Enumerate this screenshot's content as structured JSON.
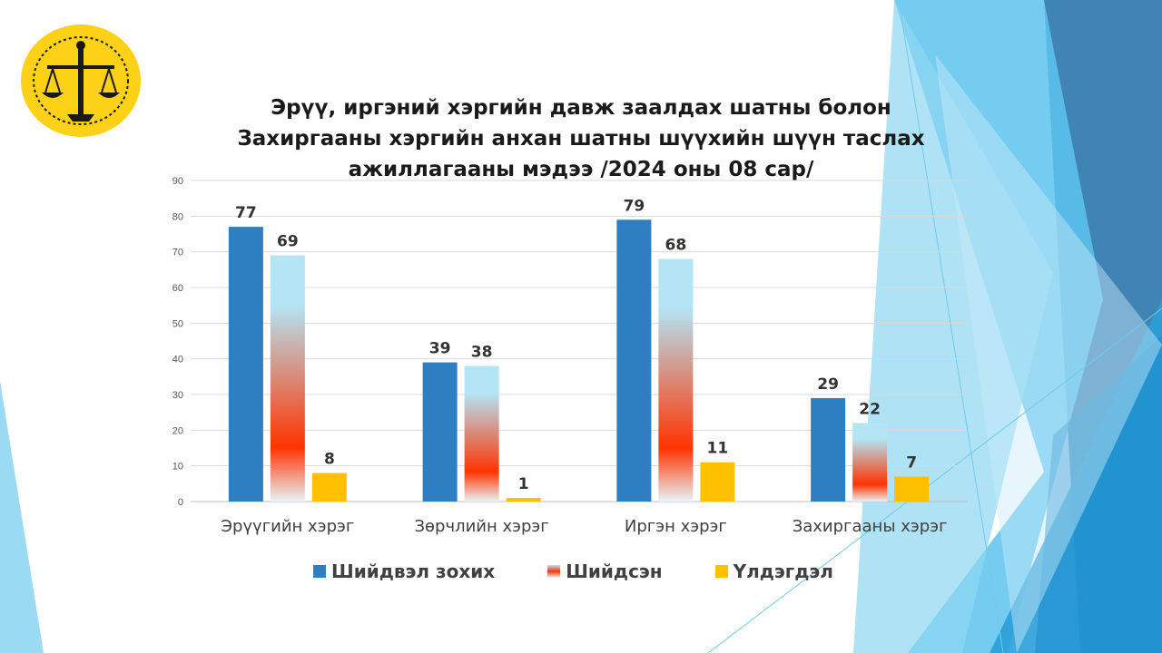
{
  "chart_data": {
    "type": "bar",
    "title_lines": [
      "Эрүү, иргэний хэргийн давж заалдах шатны болон",
      "Захиргааны хэргийн анхан шатны шүүхийн шүүн таслах",
      "ажиллагааны мэдээ /2024 оны 08 сар/"
    ],
    "categories": [
      "Эрүүгийн хэрэг",
      "Зөрчлийн хэрэг",
      "Иргэн хэрэг",
      "Захиргааны хэрэг"
    ],
    "series": [
      {
        "name": "Шийдвэл зохих",
        "values": [
          77,
          39,
          79,
          29
        ],
        "color": "#2e7fc1"
      },
      {
        "name": "Шийдсэн",
        "values": [
          69,
          38,
          68,
          22
        ],
        "color": "#ff3300",
        "gradient": [
          "#b3e5f5",
          "#ff3300",
          "#e8f4f8"
        ]
      },
      {
        "name": "Үлдэгдэл",
        "values": [
          8,
          1,
          11,
          7
        ],
        "color": "#ffc000"
      }
    ],
    "yticks": [
      0,
      10,
      20,
      30,
      40,
      50,
      60,
      70,
      80,
      90
    ],
    "ylim": [
      0,
      90
    ],
    "grid": true,
    "legend_position": "bottom",
    "xlabel": "",
    "ylabel": ""
  },
  "logo": {
    "name": "court-emblem",
    "color": "#fcd116"
  }
}
